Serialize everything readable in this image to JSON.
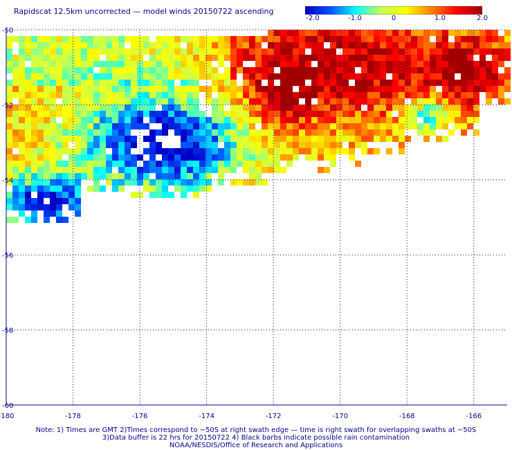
{
  "title": "Rapidscat 12.5km uncorrected — model winds 20150722 ascending",
  "colorbar": {
    "min": -2.0,
    "max": 2.0,
    "ticks": [
      "-2.0",
      "-1.0",
      "0",
      "1.0",
      "2.0"
    ],
    "colors": [
      "#0000c8",
      "#0050ff",
      "#00ffff",
      "#c8ff50",
      "#ffff00",
      "#ff8000",
      "#ff0000",
      "#a00000"
    ]
  },
  "map": {
    "lon_range": [
      -180,
      -165
    ],
    "lat_range": [
      -60,
      -50
    ],
    "x_ticks": [
      "-180",
      "-178",
      "-176",
      "-174",
      "-172",
      "-170",
      "-168",
      "-166"
    ],
    "y_ticks": [
      "-50",
      "-52",
      "-54",
      "-56",
      "-58",
      "-60"
    ],
    "grid": "dotted"
  },
  "notes": [
    "Note: 1) Times are GMT 2)Times correspond to −50S at right swath edge — time is right swath for overlapping swaths at −50S",
    "3)Data buffer is 22 hrs for 20150722 4) Black barbs indicate possible rain contamination",
    "NOAA/NESDIS/Office of Research and Applications"
  ]
}
